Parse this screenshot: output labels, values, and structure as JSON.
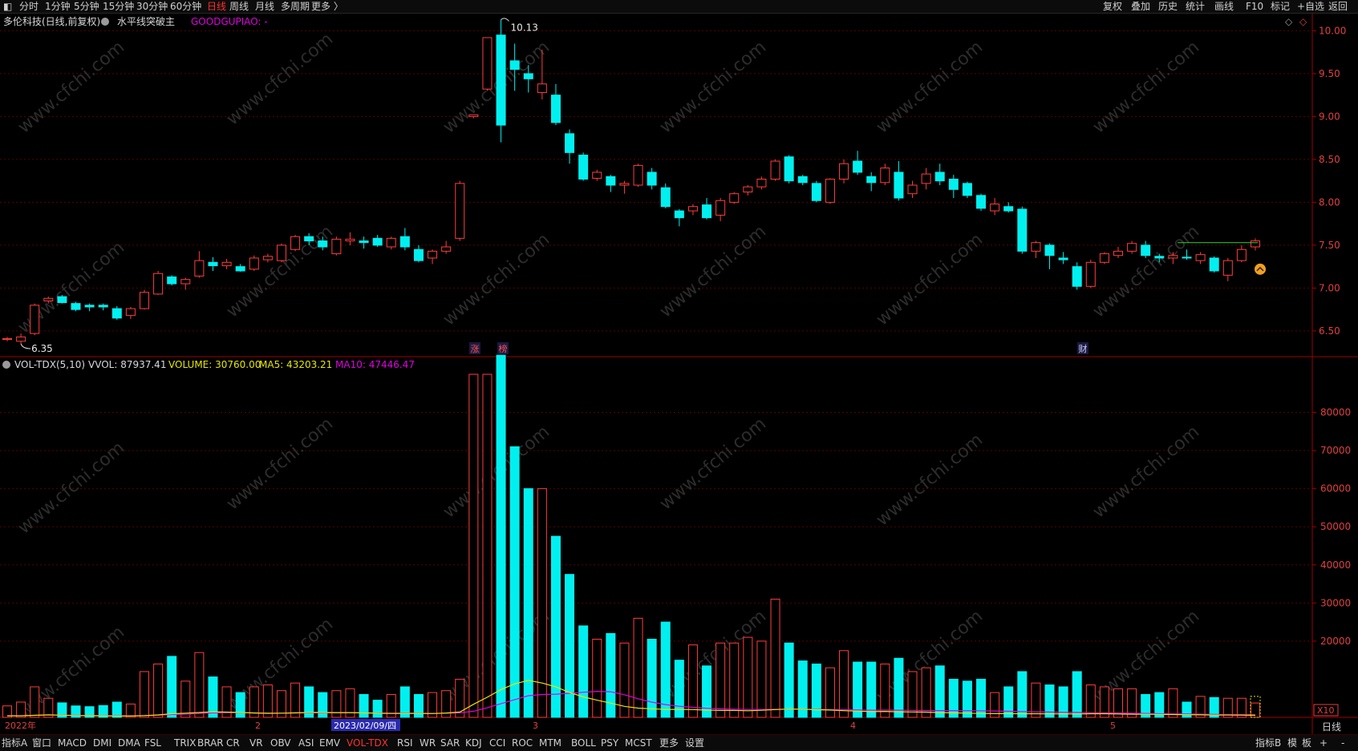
{
  "toolbar": {
    "left": [
      "分时",
      "1分钟",
      "5分钟",
      "15分钟",
      "30分钟",
      "60分钟",
      "日线",
      "周线",
      "月线",
      "多周期",
      "更多 〉"
    ],
    "active": "日线",
    "right": [
      "复权",
      "叠加",
      "历史",
      "统计",
      "画线",
      "F10",
      "标记",
      "+自选",
      "返回"
    ]
  },
  "header": {
    "stock": "多伦科技(日线,前复权)",
    "indicator": "水平线突破主",
    "goodgupiao": "GOODGUPIAO: -"
  },
  "vol_header": {
    "name": "VOL-TDX(5,10)",
    "vvol": "VVOL: 87937.41",
    "volume": "VOLUME: 30760.00",
    "ma5": "MA5: 43203.21",
    "ma10": "MA10: 47446.47"
  },
  "price_axis": [
    "10.00",
    "9.50",
    "9.00",
    "8.50",
    "8.00",
    "7.50",
    "7.00",
    "6.50"
  ],
  "vol_axis": [
    "80000",
    "70000",
    "60000",
    "50000",
    "40000",
    "30000",
    "20000"
  ],
  "vol_unit": "X10",
  "annotations": {
    "high": "10.13",
    "low": "6.35"
  },
  "markers": [
    "涨",
    "榜",
    "财"
  ],
  "date_labels": [
    "2022年",
    "2",
    "2023/02/09/四",
    "3",
    "4",
    "5"
  ],
  "period_label": "日线",
  "bottom": {
    "left": [
      "指标A",
      "窗口"
    ],
    "tabs": [
      "MACD",
      "DMI",
      "DMA",
      "FSL",
      "TRIX",
      "BRAR",
      "CR",
      "VR",
      "OBV",
      "ASI",
      "EMV",
      "VOL-TDX",
      "RSI",
      "WR",
      "SAR",
      "KDJ",
      "CCI",
      "ROC",
      "MTM",
      "BOLL",
      "PSY",
      "MCST",
      "更多",
      "设置"
    ],
    "active": "VOL-TDX",
    "right": [
      "指标B",
      "模",
      "板",
      "+",
      "-"
    ]
  },
  "watermark": "www.cfchi.com",
  "colors": {
    "up": "#ff3c3c",
    "down": "#00f0f0",
    "ma5": "#e6e600",
    "ma10": "#e000e0",
    "grid": "#5a0000",
    "axis": "#a00000"
  },
  "chart_data": {
    "type": "candlestick",
    "price_range": [
      6.2,
      10.2
    ],
    "volume_range": [
      0,
      90000
    ],
    "candles": [
      [
        6.4,
        6.43,
        6.38,
        6.41,
        300
      ],
      [
        6.38,
        6.47,
        6.35,
        6.43,
        400
      ],
      [
        6.47,
        6.82,
        6.45,
        6.8,
        800
      ],
      [
        6.85,
        6.9,
        6.82,
        6.88,
        500
      ],
      [
        6.9,
        6.92,
        6.82,
        6.83,
        380
      ],
      [
        6.82,
        6.84,
        6.73,
        6.75,
        300
      ],
      [
        6.8,
        6.82,
        6.73,
        6.78,
        280
      ],
      [
        6.8,
        6.82,
        6.74,
        6.78,
        310
      ],
      [
        6.76,
        6.79,
        6.63,
        6.65,
        400
      ],
      [
        6.68,
        6.78,
        6.64,
        6.76,
        350
      ],
      [
        6.76,
        6.98,
        6.75,
        6.95,
        1200
      ],
      [
        6.93,
        7.2,
        6.92,
        7.17,
        1400
      ],
      [
        7.13,
        7.15,
        7.03,
        7.05,
        1600
      ],
      [
        7.05,
        7.12,
        6.98,
        7.1,
        950
      ],
      [
        7.14,
        7.43,
        7.12,
        7.32,
        1700
      ],
      [
        7.3,
        7.36,
        7.2,
        7.26,
        1060
      ],
      [
        7.26,
        7.34,
        7.22,
        7.3,
        800
      ],
      [
        7.25,
        7.28,
        7.19,
        7.2,
        650
      ],
      [
        7.22,
        7.38,
        7.2,
        7.35,
        800
      ],
      [
        7.33,
        7.4,
        7.3,
        7.37,
        850
      ],
      [
        7.32,
        7.52,
        7.3,
        7.5,
        700
      ],
      [
        7.45,
        7.62,
        7.43,
        7.6,
        900
      ],
      [
        7.6,
        7.64,
        7.5,
        7.55,
        800
      ],
      [
        7.55,
        7.6,
        7.44,
        7.48,
        650
      ],
      [
        7.4,
        7.6,
        7.38,
        7.57,
        700
      ],
      [
        7.55,
        7.65,
        7.5,
        7.57,
        750
      ],
      [
        7.55,
        7.6,
        7.46,
        7.53,
        600
      ],
      [
        7.58,
        7.62,
        7.48,
        7.5,
        450
      ],
      [
        7.48,
        7.6,
        7.45,
        7.58,
        600
      ],
      [
        7.6,
        7.7,
        7.44,
        7.48,
        800
      ],
      [
        7.45,
        7.5,
        7.3,
        7.32,
        600
      ],
      [
        7.35,
        7.45,
        7.28,
        7.43,
        650
      ],
      [
        7.43,
        7.55,
        7.4,
        7.48,
        700
      ],
      [
        7.58,
        8.25,
        7.55,
        8.22,
        1000
      ],
      [
        9.0,
        9.02,
        8.98,
        9.02,
        9000
      ],
      [
        9.32,
        9.92,
        9.3,
        9.92,
        9000
      ],
      [
        9.95,
        10.13,
        8.7,
        8.9,
        9500
      ],
      [
        9.65,
        9.85,
        9.3,
        9.55,
        7100
      ],
      [
        9.5,
        9.6,
        9.28,
        9.44,
        6000
      ],
      [
        9.28,
        9.78,
        9.2,
        9.38,
        6000
      ],
      [
        9.25,
        9.38,
        8.9,
        8.93,
        4750
      ],
      [
        8.8,
        8.85,
        8.45,
        8.58,
        3750
      ],
      [
        8.55,
        8.58,
        8.25,
        8.27,
        2400
      ],
      [
        8.28,
        8.38,
        8.25,
        8.35,
        2050
      ],
      [
        8.3,
        8.32,
        8.12,
        8.2,
        2200
      ],
      [
        8.2,
        8.25,
        8.1,
        8.22,
        1950
      ],
      [
        8.2,
        8.45,
        8.18,
        8.43,
        2600
      ],
      [
        8.35,
        8.4,
        8.15,
        8.2,
        2050
      ],
      [
        8.17,
        8.22,
        7.93,
        7.95,
        2500
      ],
      [
        7.9,
        7.92,
        7.72,
        7.82,
        1500
      ],
      [
        7.9,
        7.98,
        7.85,
        7.95,
        1900
      ],
      [
        7.97,
        8.05,
        7.8,
        7.82,
        1350
      ],
      [
        7.85,
        8.05,
        7.78,
        8.02,
        1950
      ],
      [
        8.0,
        8.12,
        7.98,
        8.1,
        1950
      ],
      [
        8.12,
        8.2,
        8.08,
        8.18,
        2100
      ],
      [
        8.18,
        8.3,
        8.15,
        8.27,
        2000
      ],
      [
        8.27,
        8.5,
        8.25,
        8.48,
        3100
      ],
      [
        8.53,
        8.55,
        8.22,
        8.25,
        1950
      ],
      [
        8.3,
        8.32,
        8.2,
        8.23,
        1480
      ],
      [
        8.22,
        8.25,
        8.0,
        8.02,
        1400
      ],
      [
        8.0,
        8.28,
        7.98,
        8.27,
        1300
      ],
      [
        8.27,
        8.5,
        8.22,
        8.45,
        1750
      ],
      [
        8.48,
        8.6,
        8.32,
        8.35,
        1450
      ],
      [
        8.3,
        8.35,
        8.13,
        8.23,
        1450
      ],
      [
        8.23,
        8.45,
        8.2,
        8.4,
        1400
      ],
      [
        8.35,
        8.48,
        8.02,
        8.05,
        1550
      ],
      [
        8.1,
        8.25,
        8.05,
        8.2,
        1200
      ],
      [
        8.22,
        8.4,
        8.15,
        8.33,
        1300
      ],
      [
        8.35,
        8.45,
        8.2,
        8.25,
        1350
      ],
      [
        8.27,
        8.32,
        8.05,
        8.15,
        1000
      ],
      [
        8.22,
        8.24,
        8.05,
        8.08,
        950
      ],
      [
        8.08,
        8.1,
        7.9,
        7.93,
        1000
      ],
      [
        7.9,
        8.05,
        7.85,
        7.98,
        650
      ],
      [
        7.95,
        8.0,
        7.88,
        7.9,
        800
      ],
      [
        7.92,
        7.95,
        7.4,
        7.43,
        1200
      ],
      [
        7.43,
        7.55,
        7.35,
        7.53,
        900
      ],
      [
        7.5,
        7.52,
        7.22,
        7.38,
        850
      ],
      [
        7.35,
        7.42,
        7.28,
        7.33,
        800
      ],
      [
        7.25,
        7.3,
        6.98,
        7.02,
        1200
      ],
      [
        7.02,
        7.33,
        7.0,
        7.3,
        850
      ],
      [
        7.3,
        7.42,
        7.28,
        7.4,
        800
      ],
      [
        7.38,
        7.48,
        7.35,
        7.43,
        750
      ],
      [
        7.43,
        7.55,
        7.4,
        7.52,
        750
      ],
      [
        7.5,
        7.55,
        7.35,
        7.38,
        600
      ],
      [
        7.37,
        7.4,
        7.3,
        7.35,
        650
      ],
      [
        7.35,
        7.42,
        7.28,
        7.38,
        750
      ],
      [
        7.36,
        7.45,
        7.33,
        7.35,
        400
      ],
      [
        7.32,
        7.42,
        7.28,
        7.39,
        550
      ],
      [
        7.35,
        7.37,
        7.18,
        7.2,
        520
      ],
      [
        7.15,
        7.35,
        7.08,
        7.32,
        500
      ],
      [
        7.32,
        7.5,
        7.3,
        7.45,
        500
      ],
      [
        7.48,
        7.58,
        7.44,
        7.55,
        376
      ]
    ],
    "ma5_values": [
      41,
      41,
      52,
      66,
      56,
      47,
      44,
      40,
      36,
      33,
      45,
      63,
      95,
      110,
      126,
      145,
      137,
      128,
      113,
      105,
      110,
      118,
      128,
      128,
      124,
      124,
      118,
      107,
      101,
      103,
      102,
      99,
      114,
      139,
      343,
      527,
      729,
      880,
      969,
      901,
      799,
      652,
      537,
      451,
      372,
      289,
      242,
      224,
      209,
      208,
      205,
      190,
      180,
      182,
      173,
      184,
      203,
      216,
      215,
      200,
      191,
      175,
      162,
      150,
      155,
      146,
      141,
      136,
      124,
      118,
      109,
      100,
      96,
      96,
      94,
      94,
      91,
      92,
      89,
      95,
      95,
      89,
      83,
      79,
      77,
      74,
      69,
      65,
      59,
      58,
      56,
      52
    ],
    "ma10_values": [
      44,
      42,
      52,
      62,
      58,
      52,
      49,
      45,
      42,
      40,
      45,
      55,
      75,
      85,
      100,
      118,
      124,
      125,
      118,
      113,
      110,
      113,
      117,
      117,
      117,
      118,
      118,
      114,
      111,
      112,
      108,
      105,
      108,
      117,
      160,
      250,
      360,
      465,
      567,
      599,
      608,
      630,
      658,
      681,
      671,
      594,
      488,
      400,
      335,
      290,
      262,
      237,
      222,
      214,
      205,
      207,
      211,
      217,
      215,
      208,
      205,
      199,
      193,
      188,
      189,
      187,
      183,
      179,
      177,
      176,
      175,
      172,
      167,
      159,
      152,
      145,
      138,
      133,
      128,
      123,
      119,
      114,
      108,
      100,
      94,
      90,
      87,
      82,
      77,
      74,
      72,
      69
    ],
    "date_labels": [
      "2022年",
      "2",
      "2023/02/09/四",
      "3",
      "4",
      "5"
    ],
    "price_ticks": [
      10.0,
      9.5,
      9.0,
      8.5,
      8.0,
      7.5,
      7.0,
      6.5
    ],
    "volume_ticks": [
      80000,
      70000,
      60000,
      50000,
      40000,
      30000,
      20000
    ],
    "volume_unit": "X10",
    "high_label": 10.13,
    "low_label": 6.35
  }
}
